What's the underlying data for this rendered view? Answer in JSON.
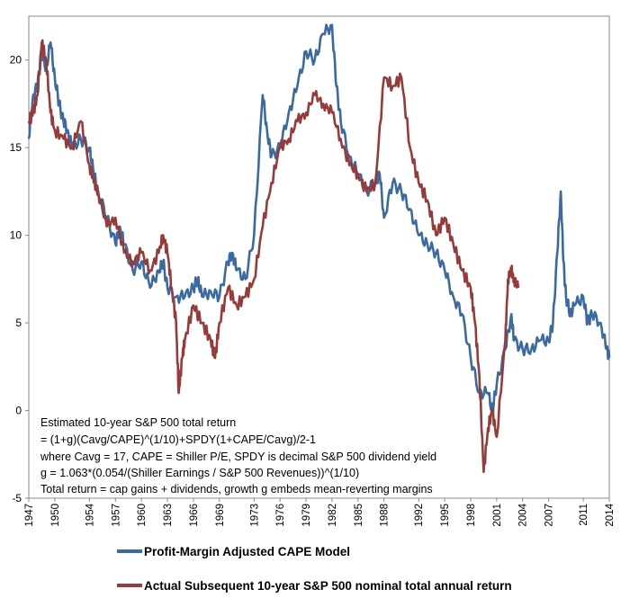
{
  "chart_data": {
    "type": "line",
    "title": "",
    "xlabel": "",
    "ylabel": "",
    "xlim": [
      1947,
      2014
    ],
    "ylim": [
      -5,
      22.5
    ],
    "yticks": [
      -5,
      0,
      5,
      10,
      15,
      20
    ],
    "xticks": [
      1947,
      1950,
      1954,
      1957,
      1960,
      1963,
      1966,
      1969,
      1973,
      1976,
      1979,
      1982,
      1985,
      1988,
      1992,
      1995,
      1998,
      2001,
      2004,
      2007,
      2011,
      2014
    ],
    "grid": false,
    "legend_position": "bottom",
    "series": [
      {
        "name": "Profit-Margin Adjusted CAPE Model",
        "color": "#3b6aa0",
        "x": [
          1947.0,
          1947.5,
          1948.0,
          1948.5,
          1949.0,
          1949.5,
          1950.0,
          1950.5,
          1951.0,
          1951.5,
          1952.0,
          1953.0,
          1954.0,
          1954.5,
          1955.0,
          1956.0,
          1957.0,
          1957.5,
          1958.0,
          1959.0,
          1960.0,
          1961.0,
          1962.0,
          1962.5,
          1963.0,
          1964.0,
          1965.0,
          1966.0,
          1966.5,
          1967.0,
          1968.0,
          1969.0,
          1970.0,
          1970.5,
          1971.0,
          1972.0,
          1973.0,
          1974.0,
          1974.5,
          1975.0,
          1976.0,
          1977.0,
          1978.0,
          1979.0,
          1980.0,
          1981.0,
          1982.0,
          1982.5,
          1983.0,
          1984.0,
          1985.0,
          1986.0,
          1987.0,
          1987.5,
          1988.0,
          1989.0,
          1990.0,
          1991.0,
          1992.0,
          1993.0,
          1994.0,
          1995.0,
          1996.0,
          1997.0,
          1998.0,
          1999.0,
          2000.0,
          2000.5,
          2001.0,
          2002.0,
          2002.7,
          2003.0,
          2004.0,
          2005.0,
          2006.0,
          2007.0,
          2007.5,
          2008.0,
          2008.4,
          2008.7,
          2009.0,
          2009.5,
          2010.0,
          2011.0,
          2011.5,
          2012.0,
          2013.0,
          2013.7,
          2014.0
        ],
        "values": [
          15.5,
          18.0,
          18.5,
          20.5,
          19.5,
          21.0,
          19.0,
          17.5,
          16.5,
          16.0,
          15.0,
          15.5,
          15.0,
          13.5,
          12.5,
          11.0,
          9.5,
          10.5,
          9.5,
          8.0,
          8.5,
          7.0,
          8.0,
          8.5,
          7.0,
          6.5,
          6.5,
          7.0,
          7.5,
          6.5,
          6.8,
          6.5,
          8.5,
          9.0,
          8.0,
          7.5,
          10.0,
          18.0,
          16.0,
          14.5,
          15.0,
          17.0,
          18.5,
          20.5,
          20.0,
          21.5,
          22.0,
          18.5,
          16.5,
          14.5,
          13.5,
          12.5,
          13.0,
          13.5,
          11.0,
          13.0,
          12.5,
          11.5,
          10.0,
          9.5,
          9.0,
          8.0,
          6.5,
          5.5,
          3.0,
          1.0,
          1.0,
          0.0,
          1.5,
          3.5,
          5.5,
          4.0,
          3.5,
          3.5,
          4.0,
          4.0,
          5.0,
          9.0,
          12.5,
          8.5,
          6.5,
          5.5,
          6.0,
          6.5,
          5.0,
          5.5,
          5.0,
          3.5,
          3.0
        ]
      },
      {
        "name": "Actual Subsequent 10-year S&P 500 nominal total annual return",
        "color": "#963a3a",
        "x": [
          1947.0,
          1947.5,
          1948.0,
          1948.5,
          1949.0,
          1949.5,
          1950.0,
          1951.0,
          1952.0,
          1953.0,
          1954.0,
          1954.5,
          1955.0,
          1956.0,
          1957.0,
          1958.0,
          1959.0,
          1960.0,
          1961.0,
          1962.0,
          1962.5,
          1963.0,
          1963.5,
          1964.0,
          1964.3,
          1964.7,
          1965.0,
          1966.0,
          1967.0,
          1968.0,
          1968.5,
          1969.0,
          1970.0,
          1971.0,
          1972.0,
          1973.0,
          1974.0,
          1975.0,
          1976.0,
          1977.0,
          1978.0,
          1979.0,
          1980.0,
          1981.0,
          1982.0,
          1983.0,
          1984.0,
          1985.0,
          1986.0,
          1987.0,
          1988.0,
          1989.0,
          1990.0,
          1991.0,
          1992.0,
          1993.0,
          1994.0,
          1995.0,
          1996.0,
          1997.0,
          1998.0,
          1998.5,
          1999.0,
          1999.5,
          2000.0,
          2000.5,
          2001.0,
          2002.0,
          2002.3,
          2002.7,
          2003.0,
          2003.5
        ],
        "values": [
          16.5,
          17.0,
          18.0,
          21.0,
          20.0,
          17.0,
          16.0,
          15.5,
          15.0,
          16.5,
          14.0,
          13.0,
          12.5,
          10.5,
          11.0,
          9.0,
          8.5,
          9.0,
          8.0,
          9.0,
          10.0,
          9.0,
          7.0,
          5.0,
          1.0,
          3.0,
          4.0,
          6.0,
          5.0,
          4.0,
          3.0,
          5.0,
          7.0,
          6.0,
          6.5,
          7.5,
          10.5,
          13.0,
          15.0,
          15.5,
          16.5,
          17.0,
          18.0,
          17.5,
          17.0,
          15.5,
          14.0,
          13.5,
          12.5,
          13.0,
          19.0,
          18.5,
          19.0,
          15.0,
          13.0,
          12.0,
          10.0,
          11.0,
          9.5,
          8.0,
          7.0,
          5.0,
          2.0,
          -3.5,
          -1.0,
          0.0,
          -1.5,
          4.0,
          7.5,
          8.0,
          7.5,
          7.0
        ]
      }
    ],
    "annotation_lines": [
      "Estimated 10-year S&P 500 total return",
      "= (1+g)(Cavg/CAPE)^(1/10)+SPDY(1+CAPE/Cavg)/2-1",
      "where Cavg = 17, CAPE = Shiller P/E, SPDY is decimal S&P 500  dividend yield",
      "g = 1.063*(0.054/(Shiller Earnings / S&P 500 Revenues))^(1/10)",
      "Total return = cap gains + dividends, growth g embeds mean-reverting margins"
    ]
  }
}
